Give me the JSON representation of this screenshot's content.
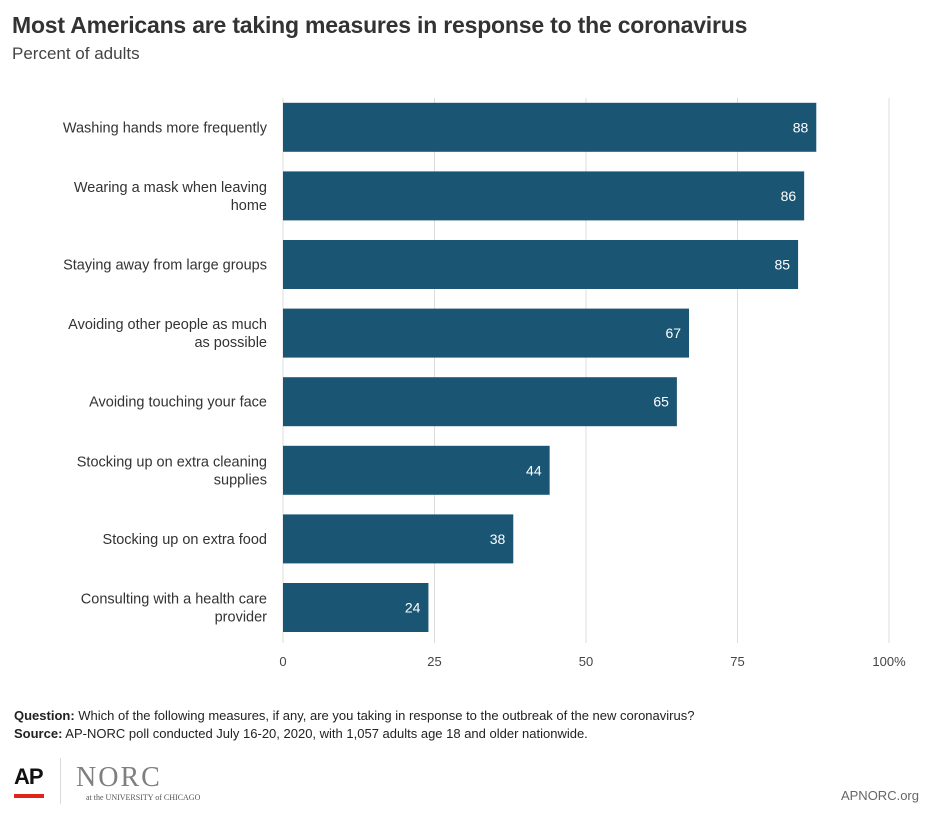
{
  "chart_data": {
    "type": "bar",
    "orientation": "horizontal",
    "title": "Most Americans are taking measures in response to the coronavirus",
    "subtitle": "Percent of adults",
    "categories": [
      "Washing hands more frequently",
      "Wearing a mask when leaving home",
      "Staying away from large groups",
      "Avoiding other people as much as possible",
      "Avoiding touching your face",
      "Stocking up on extra cleaning supplies",
      "Stocking up on extra food",
      "Consulting with a health care provider"
    ],
    "values": [
      88,
      86,
      85,
      67,
      65,
      44,
      38,
      24
    ],
    "xlim": [
      0,
      100
    ],
    "xticks": [
      0,
      25,
      50,
      75,
      100
    ],
    "xtick_labels": [
      "0",
      "25",
      "50",
      "75",
      "100%"
    ],
    "bar_color": "#1a5673",
    "label_color": "#ffffff",
    "grid": true
  },
  "footnotes": {
    "question_label": "Question:",
    "question_text": " Which of the following measures, if any, are you taking in response to the outbreak of the new coronavirus?",
    "source_label": "Source:",
    "source_text": " AP-NORC poll conducted July 16-20, 2020, with 1,057 adults age 18 and older nationwide."
  },
  "footer": {
    "ap_logo": "AP",
    "norc_logo": "NORC",
    "norc_sub": "at the UNIVERSITY of CHICAGO",
    "site": "APNORC.org",
    "accent": "#e2231a",
    "norc_orange": "#f28c28"
  }
}
